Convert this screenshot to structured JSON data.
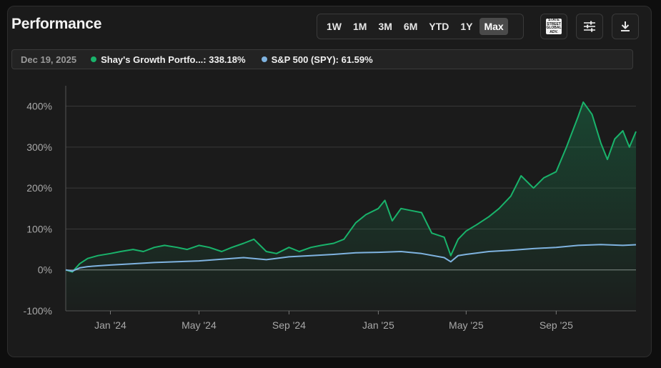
{
  "card": {
    "title": "Performance",
    "ranges": [
      "1W",
      "1M",
      "3M",
      "6M",
      "YTD",
      "1Y",
      "Max"
    ],
    "active_range": "Max",
    "icons": [
      "state-street-logo",
      "sliders-icon",
      "download-icon"
    ],
    "state_street_text": [
      "STATE",
      "STREET",
      "GLOBAL",
      "ADV."
    ]
  },
  "legend": {
    "date": "Dec 19, 2025",
    "items": [
      {
        "label": "Shay's Growth Portfo...: 338.18%",
        "color": "#19b36b"
      },
      {
        "label": "S&P 500 (SPY): 61.59%",
        "color": "#7fb3e0"
      }
    ]
  },
  "chart_data": {
    "type": "line",
    "x_type": "date",
    "xlim": [
      "2023-11-01",
      "2025-12-19"
    ],
    "ylim": [
      -100,
      450
    ],
    "y_ticks": [
      -100,
      0,
      100,
      200,
      300,
      400
    ],
    "y_tick_labels": [
      "-100%",
      "0%",
      "100%",
      "200%",
      "300%",
      "400%"
    ],
    "x_ticks": [
      "2024-01-01",
      "2024-05-01",
      "2024-09-01",
      "2025-01-01",
      "2025-05-01",
      "2025-09-01"
    ],
    "x_tick_labels": [
      "Jan '24",
      "May '24",
      "Sep '24",
      "Jan '25",
      "May '25",
      "Sep '25"
    ],
    "grid": "horizontal",
    "series": [
      {
        "name": "Shay's Growth Portfo...",
        "color": "#19b36b",
        "area": true,
        "points": [
          [
            "2023-11-01",
            0
          ],
          [
            "2023-11-10",
            -5
          ],
          [
            "2023-11-20",
            15
          ],
          [
            "2023-12-01",
            28
          ],
          [
            "2023-12-15",
            35
          ],
          [
            "2024-01-01",
            40
          ],
          [
            "2024-01-15",
            45
          ],
          [
            "2024-02-01",
            50
          ],
          [
            "2024-02-15",
            45
          ],
          [
            "2024-03-01",
            55
          ],
          [
            "2024-03-15",
            60
          ],
          [
            "2024-04-01",
            55
          ],
          [
            "2024-04-15",
            50
          ],
          [
            "2024-05-01",
            60
          ],
          [
            "2024-05-15",
            55
          ],
          [
            "2024-06-01",
            45
          ],
          [
            "2024-06-15",
            55
          ],
          [
            "2024-07-01",
            65
          ],
          [
            "2024-07-15",
            75
          ],
          [
            "2024-08-01",
            45
          ],
          [
            "2024-08-15",
            40
          ],
          [
            "2024-09-01",
            55
          ],
          [
            "2024-09-15",
            45
          ],
          [
            "2024-10-01",
            55
          ],
          [
            "2024-10-15",
            60
          ],
          [
            "2024-11-01",
            65
          ],
          [
            "2024-11-15",
            75
          ],
          [
            "2024-12-01",
            115
          ],
          [
            "2024-12-15",
            135
          ],
          [
            "2025-01-01",
            150
          ],
          [
            "2025-01-10",
            170
          ],
          [
            "2025-01-20",
            120
          ],
          [
            "2025-02-01",
            150
          ],
          [
            "2025-02-15",
            145
          ],
          [
            "2025-03-01",
            140
          ],
          [
            "2025-03-15",
            90
          ],
          [
            "2025-04-01",
            80
          ],
          [
            "2025-04-10",
            35
          ],
          [
            "2025-04-20",
            75
          ],
          [
            "2025-05-01",
            95
          ],
          [
            "2025-05-15",
            110
          ],
          [
            "2025-06-01",
            130
          ],
          [
            "2025-06-15",
            150
          ],
          [
            "2025-07-01",
            180
          ],
          [
            "2025-07-15",
            230
          ],
          [
            "2025-08-01",
            200
          ],
          [
            "2025-08-15",
            225
          ],
          [
            "2025-09-01",
            240
          ],
          [
            "2025-09-15",
            300
          ],
          [
            "2025-10-01",
            375
          ],
          [
            "2025-10-08",
            410
          ],
          [
            "2025-10-20",
            380
          ],
          [
            "2025-11-01",
            310
          ],
          [
            "2025-11-10",
            270
          ],
          [
            "2025-11-20",
            320
          ],
          [
            "2025-12-01",
            340
          ],
          [
            "2025-12-10",
            300
          ],
          [
            "2025-12-19",
            338.18
          ]
        ]
      },
      {
        "name": "S&P 500 (SPY)",
        "color": "#7fb3e0",
        "area": false,
        "points": [
          [
            "2023-11-01",
            0
          ],
          [
            "2023-11-10",
            -3
          ],
          [
            "2023-11-20",
            5
          ],
          [
            "2023-12-01",
            8
          ],
          [
            "2023-12-15",
            10
          ],
          [
            "2024-01-01",
            12
          ],
          [
            "2024-02-01",
            15
          ],
          [
            "2024-03-01",
            18
          ],
          [
            "2024-04-01",
            20
          ],
          [
            "2024-05-01",
            22
          ],
          [
            "2024-06-01",
            26
          ],
          [
            "2024-07-01",
            30
          ],
          [
            "2024-08-01",
            25
          ],
          [
            "2024-09-01",
            32
          ],
          [
            "2024-10-01",
            35
          ],
          [
            "2024-11-01",
            38
          ],
          [
            "2024-12-01",
            42
          ],
          [
            "2025-01-01",
            43
          ],
          [
            "2025-02-01",
            45
          ],
          [
            "2025-03-01",
            40
          ],
          [
            "2025-04-01",
            30
          ],
          [
            "2025-04-10",
            20
          ],
          [
            "2025-04-20",
            35
          ],
          [
            "2025-05-01",
            38
          ],
          [
            "2025-06-01",
            45
          ],
          [
            "2025-07-01",
            48
          ],
          [
            "2025-08-01",
            52
          ],
          [
            "2025-09-01",
            55
          ],
          [
            "2025-10-01",
            60
          ],
          [
            "2025-11-01",
            62
          ],
          [
            "2025-12-01",
            60
          ],
          [
            "2025-12-19",
            61.59
          ]
        ]
      }
    ]
  }
}
